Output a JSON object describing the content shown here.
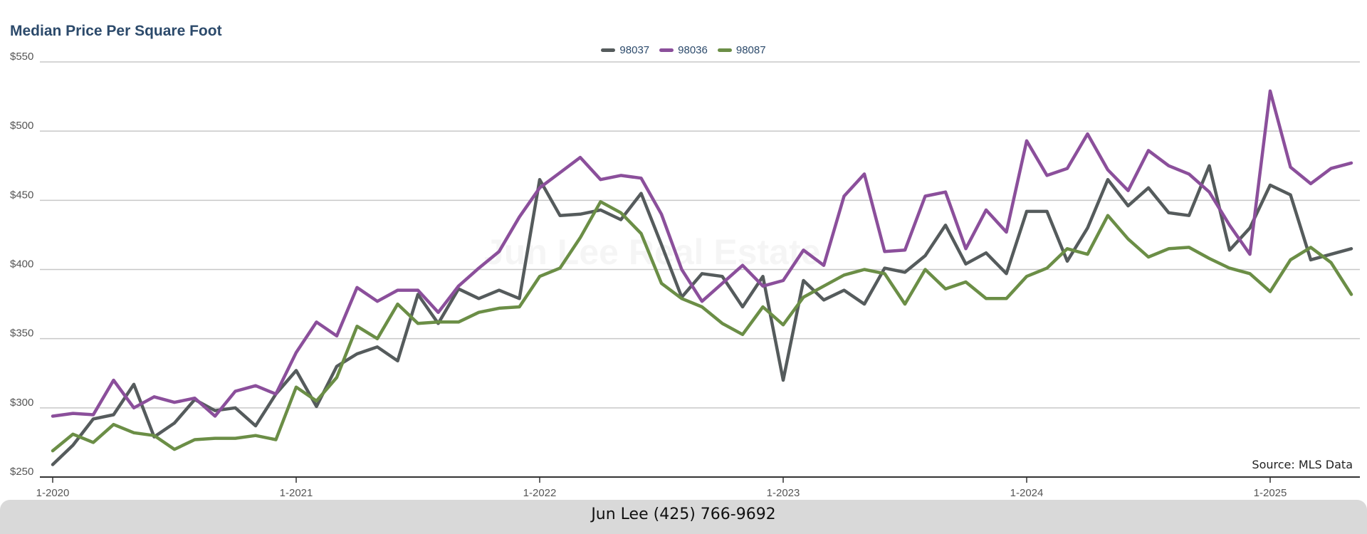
{
  "footer": {
    "text": "Jun Lee (425) 766-9692"
  },
  "watermark": "Jun Lee Real Estate",
  "source": "Source: MLS Data",
  "chart_data": {
    "type": "line",
    "title": "Median Price Per Square Foot",
    "xlabel": "",
    "ylabel": "",
    "ylim": [
      250,
      550
    ],
    "y_ticks": [
      "$250",
      "$300",
      "$350",
      "$400",
      "$450",
      "$500",
      "$550"
    ],
    "y_tick_values": [
      250,
      300,
      350,
      400,
      450,
      500,
      550
    ],
    "x_tick_labels": [
      "1-2020",
      "1-2021",
      "1-2022",
      "1-2023",
      "1-2024",
      "1-2025"
    ],
    "x_tick_months": [
      "2020-01",
      "2021-01",
      "2022-01",
      "2023-01",
      "2024-01",
      "2025-01"
    ],
    "x": [
      "2020-01",
      "2020-02",
      "2020-03",
      "2020-04",
      "2020-05",
      "2020-06",
      "2020-07",
      "2020-08",
      "2020-09",
      "2020-10",
      "2020-11",
      "2020-12",
      "2021-01",
      "2021-02",
      "2021-03",
      "2021-04",
      "2021-05",
      "2021-06",
      "2021-07",
      "2021-08",
      "2021-09",
      "2021-10",
      "2021-11",
      "2021-12",
      "2022-01",
      "2022-02",
      "2022-03",
      "2022-04",
      "2022-05",
      "2022-06",
      "2022-07",
      "2022-08",
      "2022-09",
      "2022-10",
      "2022-11",
      "2022-12",
      "2023-01",
      "2023-02",
      "2023-03",
      "2023-04",
      "2023-05",
      "2023-06",
      "2023-07",
      "2023-08",
      "2023-09",
      "2023-10",
      "2023-11",
      "2023-12",
      "2024-01",
      "2024-02",
      "2024-03",
      "2024-04",
      "2024-05",
      "2024-06",
      "2024-07",
      "2024-08",
      "2024-09",
      "2024-10",
      "2024-11",
      "2024-12",
      "2025-01",
      "2025-02",
      "2025-03",
      "2025-04",
      "2025-05"
    ],
    "legend_position": "top-center",
    "grid": true,
    "series": [
      {
        "name": "98037",
        "color": "#555b5c",
        "values": [
          259,
          273,
          292,
          295,
          317,
          279,
          289,
          306,
          298,
          300,
          287,
          310,
          327,
          301,
          330,
          339,
          344,
          334,
          382,
          361,
          386,
          379,
          385,
          379,
          465,
          439,
          440,
          443,
          436,
          455,
          418,
          380,
          397,
          395,
          373,
          395,
          320,
          392,
          378,
          385,
          375,
          401,
          398,
          410,
          432,
          404,
          412,
          397,
          442,
          442,
          406,
          430,
          465,
          446,
          459,
          441,
          439,
          475,
          414,
          430,
          461,
          454,
          407,
          411,
          415
        ]
      },
      {
        "name": "98036",
        "color": "#8b4f9b",
        "values": [
          294,
          296,
          295,
          320,
          300,
          308,
          304,
          307,
          294,
          312,
          316,
          310,
          340,
          362,
          352,
          387,
          377,
          385,
          385,
          369,
          388,
          401,
          413,
          438,
          459,
          470,
          481,
          465,
          468,
          466,
          440,
          400,
          377,
          390,
          403,
          388,
          392,
          414,
          403,
          453,
          469,
          413,
          414,
          453,
          456,
          415,
          443,
          427,
          493,
          468,
          473,
          498,
          472,
          457,
          486,
          475,
          469,
          456,
          432,
          411,
          529,
          474,
          462,
          473,
          477
        ]
      },
      {
        "name": "98087",
        "color": "#6b8e46",
        "values": [
          269,
          281,
          275,
          288,
          282,
          280,
          270,
          277,
          278,
          278,
          280,
          277,
          315,
          305,
          322,
          359,
          350,
          375,
          361,
          362,
          362,
          369,
          372,
          373,
          395,
          401,
          423,
          449,
          441,
          426,
          390,
          379,
          373,
          361,
          353,
          373,
          360,
          380,
          388,
          396,
          400,
          397,
          375,
          400,
          386,
          391,
          379,
          379,
          395,
          401,
          415,
          411,
          439,
          422,
          409,
          415,
          416,
          408,
          401,
          397,
          384,
          407,
          416,
          405,
          382
        ]
      }
    ]
  }
}
